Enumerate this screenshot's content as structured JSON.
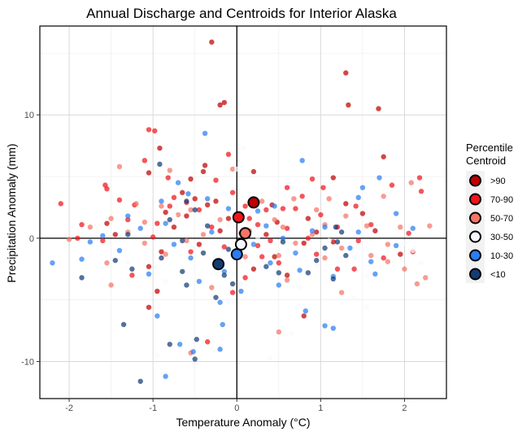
{
  "chart_data": {
    "type": "scatter",
    "title": "Annual Discharge and Centroids for Interior Alaska",
    "xlabel": "Temperature Anomaly (°C)",
    "ylabel": "Precipitation Anomaly (mm)",
    "xlim": [
      -2.35,
      2.5
    ],
    "ylim": [
      -13,
      17.2
    ],
    "xticks": [
      "-2",
      "-1",
      "0",
      "1",
      "2"
    ],
    "xtick_values": [
      -2,
      -1,
      0,
      1,
      2
    ],
    "yticks": [
      "-10",
      "0",
      "10"
    ],
    "ytick_values": [
      -10,
      0,
      10
    ],
    "grid": true,
    "reference_lines": {
      "x": 0,
      "y": 0
    },
    "legend": {
      "title_line1": "Percentile",
      "title_line2": "Centroid",
      "position": "right",
      "entries": [
        {
          "label": ">90",
          "color": "#c00000"
        },
        {
          "label": "70-90",
          "color": "#f0141c"
        },
        {
          "label": "50-70",
          "color": "#f47565"
        },
        {
          "label": "30-50",
          "color": "#f5f9ff"
        },
        {
          "label": "10-30",
          "color": "#2a7ef0"
        },
        {
          "label": "<10",
          "color": "#143c73"
        }
      ]
    },
    "series": [
      {
        "name": ">90",
        "color": "#c00000",
        "points": [
          [
            -0.3,
            15.9
          ],
          [
            1.3,
            13.4
          ],
          [
            -0.15,
            11.0
          ],
          [
            -0.2,
            10.8
          ],
          [
            1.33,
            10.8
          ],
          [
            1.69,
            10.5
          ],
          [
            -0.92,
            7.3
          ],
          [
            -0.38,
            5.9
          ],
          [
            -0.4,
            5.4
          ],
          [
            1.75,
            6.6
          ],
          [
            -1.05,
            5.3
          ],
          [
            0.2,
            5.4
          ],
          [
            -0.55,
            4.8
          ],
          [
            1.15,
            4.9
          ],
          [
            -0.65,
            3.7
          ],
          [
            -0.5,
            3.2
          ],
          [
            -0.25,
            3.0
          ],
          [
            -0.35,
            2.7
          ],
          [
            0.42,
            2.7
          ],
          [
            1.3,
            2.8
          ],
          [
            -0.85,
            2.1
          ],
          [
            -0.6,
            1.8
          ],
          [
            -0.1,
            1.6
          ],
          [
            0.48,
            1.3
          ],
          [
            0.85,
            1.6
          ],
          [
            1.5,
            2.0
          ],
          [
            -1.55,
            1.2
          ],
          [
            -0.75,
            0.9
          ],
          [
            -0.2,
            0.6
          ],
          [
            0.35,
            0.3
          ],
          [
            0.95,
            0.5
          ],
          [
            1.65,
            0.6
          ],
          [
            -1.45,
            0.3
          ],
          [
            -0.45,
            -0.5
          ],
          [
            0.8,
            -0.4
          ],
          [
            1.15,
            -0.3
          ],
          [
            -0.9,
            -1.1
          ],
          [
            0.45,
            -1.5
          ],
          [
            -1.05,
            -2.3
          ],
          [
            0.2,
            -2.5
          ],
          [
            0.6,
            -3.0
          ],
          [
            -0.95,
            -4.3
          ],
          [
            0.8,
            -6.3
          ],
          [
            1.95,
            -1.3
          ],
          [
            -1.05,
            -5.6
          ]
        ]
      },
      {
        "name": "70-90",
        "color": "#f0141c",
        "points": [
          [
            -1.05,
            8.8
          ],
          [
            -0.98,
            8.7
          ],
          [
            -0.1,
            6.8
          ],
          [
            -1.1,
            6.3
          ],
          [
            -0.82,
            4.9
          ],
          [
            0.9,
            4.8
          ],
          [
            -0.25,
            4.7
          ],
          [
            -1.57,
            4.3
          ],
          [
            -1.55,
            4.0
          ],
          [
            0.6,
            4.1
          ],
          [
            1.85,
            4.3
          ],
          [
            2.18,
            4.9
          ],
          [
            -1.4,
            3.1
          ],
          [
            -0.75,
            3.3
          ],
          [
            -0.05,
            3.7
          ],
          [
            0.35,
            2.3
          ],
          [
            0.55,
            2.4
          ],
          [
            0.78,
            3.4
          ],
          [
            -1.22,
            2.7
          ],
          [
            1.03,
            4.1
          ],
          [
            1.42,
            2.6
          ],
          [
            -0.45,
            2.3
          ],
          [
            0.1,
            2.6
          ],
          [
            0.15,
            1.6
          ],
          [
            0.7,
            2.4
          ],
          [
            1.0,
            1.9
          ],
          [
            2.2,
            3.8
          ],
          [
            -2.1,
            2.8
          ],
          [
            -1.85,
            1.1
          ],
          [
            -1.3,
            1.5
          ],
          [
            -0.95,
            1.2
          ],
          [
            -0.3,
            0.9
          ],
          [
            0.25,
            1.1
          ],
          [
            0.6,
            0.8
          ],
          [
            1.2,
            0.9
          ],
          [
            2.05,
            0.4
          ],
          [
            -1.9,
            0.0
          ],
          [
            -1.0,
            0.1
          ],
          [
            0.05,
            0.4
          ],
          [
            0.25,
            -0.6
          ],
          [
            0.85,
            0.0
          ],
          [
            1.45,
            -0.2
          ],
          [
            -1.6,
            -0.2
          ],
          [
            -0.55,
            -1.1
          ],
          [
            0.3,
            -1.5
          ],
          [
            0.95,
            -1.3
          ],
          [
            1.4,
            -2.5
          ],
          [
            -0.2,
            -2.2
          ],
          [
            0.5,
            -2.0
          ],
          [
            1.75,
            -1.6
          ],
          [
            -1.25,
            -3.0
          ],
          [
            0.1,
            -3.2
          ],
          [
            1.2,
            -2.5
          ],
          [
            -0.05,
            -4.4
          ],
          [
            -0.35,
            -8.4
          ],
          [
            2.1,
            -1.1
          ],
          [
            -0.8,
            2.6
          ],
          [
            -0.6,
            2.9
          ],
          [
            1.6,
            1.1
          ],
          [
            0.4,
            -0.2
          ],
          [
            -0.15,
            -0.7
          ]
        ]
      },
      {
        "name": "50-70",
        "color": "#f47565",
        "points": [
          [
            -1.4,
            5.8
          ],
          [
            -0.8,
            5.5
          ],
          [
            -0.05,
            5.6
          ],
          [
            0.68,
            3.2
          ],
          [
            1.1,
            3.2
          ],
          [
            2.08,
            4.5
          ],
          [
            1.75,
            3.4
          ],
          [
            -1.2,
            2.8
          ],
          [
            -0.9,
            2.6
          ],
          [
            -0.55,
            2.3
          ],
          [
            0.3,
            3.0
          ],
          [
            0.95,
            2.3
          ],
          [
            -1.5,
            1.6
          ],
          [
            -0.7,
            1.9
          ],
          [
            0.45,
            1.5
          ],
          [
            1.3,
            1.8
          ],
          [
            2.3,
            1.0
          ],
          [
            -1.75,
            0.9
          ],
          [
            -1.3,
            0.5
          ],
          [
            -0.4,
            0.3
          ],
          [
            0.15,
            0.6
          ],
          [
            0.55,
            0.9
          ],
          [
            1.05,
            1.1
          ],
          [
            1.55,
            1.0
          ],
          [
            1.95,
            0.9
          ],
          [
            -2.0,
            -0.1
          ],
          [
            -1.1,
            -0.4
          ],
          [
            -0.6,
            -0.2
          ],
          [
            0.7,
            -0.4
          ],
          [
            1.25,
            -0.8
          ],
          [
            1.8,
            -0.5
          ],
          [
            -1.55,
            -2.0
          ],
          [
            -0.85,
            -1.3
          ],
          [
            0.1,
            -1.5
          ],
          [
            0.5,
            -1.4
          ],
          [
            1.05,
            -1.6
          ],
          [
            1.6,
            -1.4
          ],
          [
            2.0,
            -2.5
          ],
          [
            2.25,
            -3.2
          ],
          [
            -1.5,
            -3.8
          ],
          [
            -0.3,
            -4.0
          ],
          [
            0.6,
            -3.4
          ],
          [
            -0.55,
            -9.3
          ],
          [
            0.5,
            -7.6
          ],
          [
            2.15,
            -3.7
          ],
          [
            1.25,
            -4.4
          ],
          [
            -1.1,
            1.3
          ],
          [
            -0.2,
            1.5
          ],
          [
            0.9,
            0.3
          ],
          [
            1.8,
            -1.9
          ]
        ]
      },
      {
        "name": "30-50",
        "color": "#f5f9ff",
        "points": [
          [
            0.08,
            7.3
          ],
          [
            0.0,
            5.6
          ],
          [
            -0.15,
            3.6
          ],
          [
            0.38,
            3.0
          ],
          [
            0.72,
            2.0
          ],
          [
            1.25,
            2.1
          ],
          [
            -0.75,
            1.8
          ],
          [
            -0.1,
            1.0
          ],
          [
            0.45,
            0.7
          ],
          [
            1.5,
            0.4
          ],
          [
            -1.65,
            0.5
          ],
          [
            -0.95,
            0.7
          ],
          [
            0.25,
            0.1
          ],
          [
            1.1,
            -0.2
          ],
          [
            2.0,
            -0.4
          ],
          [
            -0.5,
            -0.8
          ],
          [
            0.6,
            -1.0
          ],
          [
            1.4,
            -1.5
          ],
          [
            2.2,
            -2.0
          ],
          [
            -1.3,
            -1.9
          ],
          [
            -0.25,
            -1.5
          ],
          [
            0.3,
            -2.4
          ],
          [
            0.95,
            -2.2
          ],
          [
            1.55,
            -3.1
          ],
          [
            -0.85,
            -3.5
          ],
          [
            0.05,
            -3.7
          ],
          [
            0.75,
            -4.0
          ],
          [
            1.4,
            -4.8
          ],
          [
            1.55,
            -5.6
          ],
          [
            -0.1,
            -5.2
          ],
          [
            -0.95,
            -9.5
          ],
          [
            0.4,
            -9.7
          ],
          [
            0.65,
            -7.7
          ],
          [
            2.1,
            -1.0
          ],
          [
            -0.05,
            -2.9
          ]
        ]
      },
      {
        "name": "10-30",
        "color": "#2a7ef0",
        "points": [
          [
            -0.38,
            8.5
          ],
          [
            0.78,
            6.3
          ],
          [
            -0.7,
            4.5
          ],
          [
            -0.58,
            3.6
          ],
          [
            1.5,
            4.1
          ],
          [
            1.7,
            4.9
          ],
          [
            -0.9,
            3.0
          ],
          [
            -0.35,
            3.2
          ],
          [
            0.45,
            2.6
          ],
          [
            1.45,
            3.3
          ],
          [
            -0.1,
            2.4
          ],
          [
            0.25,
            2.2
          ],
          [
            -1.3,
            1.8
          ],
          [
            1.9,
            2.0
          ],
          [
            -0.85,
            1.2
          ],
          [
            0.35,
            1.0
          ],
          [
            0.9,
            0.6
          ],
          [
            1.05,
            0.9
          ],
          [
            -1.6,
            0.2
          ],
          [
            -1.15,
            0.8
          ],
          [
            -0.3,
            0.5
          ],
          [
            0.55,
            0.0
          ],
          [
            1.45,
            0.5
          ],
          [
            2.1,
            0.8
          ],
          [
            -2.2,
            -2.0
          ],
          [
            -1.75,
            -0.3
          ],
          [
            -1.4,
            -1.0
          ],
          [
            -0.75,
            -0.5
          ],
          [
            0.2,
            -0.5
          ],
          [
            0.7,
            -1.2
          ],
          [
            1.35,
            -0.8
          ],
          [
            1.9,
            -0.6
          ],
          [
            -1.85,
            -1.7
          ],
          [
            -0.55,
            -1.6
          ],
          [
            -0.15,
            -2.7
          ],
          [
            0.4,
            -2.0
          ],
          [
            0.75,
            -2.6
          ],
          [
            1.15,
            -3.1
          ],
          [
            1.65,
            -2.9
          ],
          [
            -1.05,
            -2.9
          ],
          [
            -0.45,
            -3.5
          ],
          [
            0.05,
            -4.3
          ],
          [
            0.5,
            -3.8
          ],
          [
            -0.95,
            -6.3
          ],
          [
            -0.2,
            -5.2
          ],
          [
            0.82,
            -5.9
          ],
          [
            1.05,
            -7.1
          ],
          [
            1.15,
            -7.3
          ],
          [
            -0.17,
            -7.0
          ],
          [
            -0.68,
            -8.6
          ],
          [
            -0.2,
            -9.0
          ],
          [
            -0.85,
            -11.2
          ],
          [
            -0.52,
            -9.2
          ],
          [
            1.6,
            -1.9
          ]
        ]
      },
      {
        "name": "<10",
        "color": "#143c73",
        "points": [
          [
            -0.92,
            6.0
          ],
          [
            -0.6,
            3.0
          ],
          [
            -0.5,
            2.3
          ],
          [
            -0.8,
            1.5
          ],
          [
            -0.35,
            1.0
          ],
          [
            1.18,
            0.9
          ],
          [
            1.2,
            -0.3
          ],
          [
            -1.3,
            0.3
          ],
          [
            -0.65,
            -0.2
          ],
          [
            -0.1,
            -0.9
          ],
          [
            0.55,
            -0.3
          ],
          [
            1.25,
            0.5
          ],
          [
            -1.45,
            -1.8
          ],
          [
            -0.9,
            -1.6
          ],
          [
            -0.4,
            -1.2
          ],
          [
            0.35,
            -2.3
          ],
          [
            0.95,
            -1.8
          ],
          [
            1.15,
            -3.3
          ],
          [
            -1.85,
            -3.2
          ],
          [
            -1.25,
            -2.5
          ],
          [
            -0.65,
            -2.7
          ],
          [
            -0.15,
            -3.0
          ],
          [
            0.5,
            -2.8
          ],
          [
            -0.6,
            -3.8
          ],
          [
            -0.05,
            -3.7
          ],
          [
            -0.25,
            -4.8
          ],
          [
            -1.35,
            -7.0
          ],
          [
            -0.8,
            -8.6
          ],
          [
            -0.5,
            -9.8
          ],
          [
            -0.48,
            -8.2
          ],
          [
            -1.15,
            -11.6
          ],
          [
            1.3,
            -1.4
          ],
          [
            1.05,
            -0.8
          ],
          [
            0.85,
            -2.8
          ]
        ]
      }
    ],
    "centroids": [
      {
        "name": ">90",
        "x": 0.2,
        "y": 2.9
      },
      {
        "name": "70-90",
        "x": 0.02,
        "y": 1.7
      },
      {
        "name": "50-70",
        "x": 0.1,
        "y": 0.4
      },
      {
        "name": "30-50",
        "x": 0.05,
        "y": -0.5
      },
      {
        "name": "10-30",
        "x": 0.0,
        "y": -1.3
      },
      {
        "name": "<10",
        "x": -0.22,
        "y": -2.1
      }
    ]
  }
}
